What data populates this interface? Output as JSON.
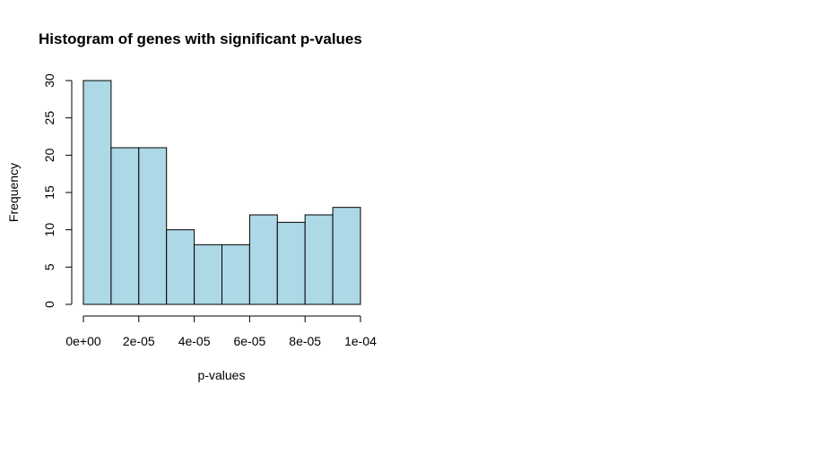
{
  "chart_data": {
    "type": "bar",
    "title": "Histogram of genes with significant p-values",
    "xlabel": "p-values",
    "ylabel": "Frequency",
    "bin_edges": [
      0,
      1e-05,
      2e-05,
      3e-05,
      4e-05,
      5e-05,
      6e-05,
      7e-05,
      8e-05,
      9e-05,
      0.0001
    ],
    "values": [
      30,
      21,
      21,
      10,
      8,
      8,
      12,
      11,
      12,
      13
    ],
    "xlim": [
      0,
      0.0001
    ],
    "ylim": [
      0,
      30
    ],
    "x_ticks": [
      0,
      2e-05,
      4e-05,
      6e-05,
      8e-05,
      0.0001
    ],
    "x_tick_labels": [
      "0e+00",
      "2e-05",
      "4e-05",
      "6e-05",
      "8e-05",
      "1e-04"
    ],
    "y_ticks": [
      0,
      5,
      10,
      15,
      20,
      25,
      30
    ],
    "y_tick_labels": [
      "0",
      "5",
      "10",
      "15",
      "20",
      "25",
      "30"
    ],
    "bar_color": "#add8e6",
    "border_color": "#000000",
    "grid": false,
    "legend": "none"
  }
}
